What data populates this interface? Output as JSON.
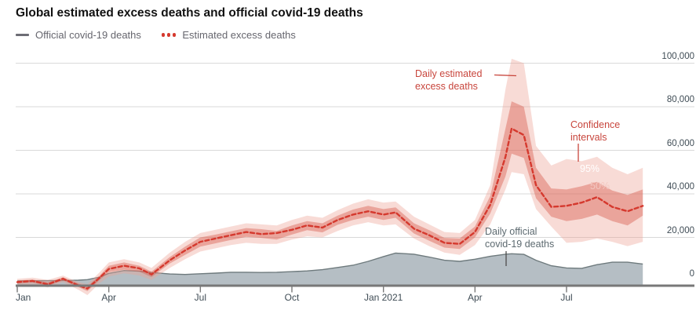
{
  "title": "Global estimated excess deaths and official covid-19 deaths",
  "legend": [
    {
      "label": "Official covid-19 deaths",
      "marker": "gray-dash"
    },
    {
      "label": "Estimated excess deaths",
      "marker": "red-dots"
    }
  ],
  "y_axis": {
    "ticks": [
      {
        "value": 0,
        "label": "0"
      },
      {
        "value": 20000,
        "label": "20,000"
      },
      {
        "value": 40000,
        "label": "40,000"
      },
      {
        "value": 60000,
        "label": "60,000"
      },
      {
        "value": 80000,
        "label": "80,000"
      },
      {
        "value": 100000,
        "label": "100,000"
      }
    ]
  },
  "x_axis": {
    "ticks": [
      {
        "t": 0,
        "label": "Jan",
        "align": "left"
      },
      {
        "t": 3,
        "label": "Apr",
        "align": "center"
      },
      {
        "t": 6,
        "label": "Jul",
        "align": "center"
      },
      {
        "t": 9,
        "label": "Oct",
        "align": "center"
      },
      {
        "t": 12,
        "label": "Jan 2021",
        "align": "center"
      },
      {
        "t": 15,
        "label": "Apr",
        "align": "center"
      },
      {
        "t": 18,
        "label": "Jul",
        "align": "center"
      }
    ]
  },
  "annotations": {
    "excess": {
      "line1": "Daily estimated",
      "line2": "excess deaths"
    },
    "confidence": {
      "line1": "Confidence",
      "line2": "intervals"
    },
    "ci95_label": "95%",
    "ci50_label": "50%",
    "official": {
      "line1": "Daily official",
      "line2": "covid-19 deaths"
    }
  },
  "colors": {
    "excess_line": "#d5392e",
    "ci95_band": "rgba(236,160,148,0.38)",
    "ci50_band": "rgba(214,88,74,0.42)",
    "official_fill": "#b5bec4",
    "official_stroke": "#6e7a7d",
    "axis": "#787878",
    "gridline": "#d9d9d9",
    "annotation_red": "#c8463d",
    "annotation_gray": "#5d6a70",
    "tick_label": "#3f4c55"
  },
  "chart_data": {
    "type": "line",
    "title": "Global estimated excess deaths and official covid-19 deaths",
    "x_unit": "months since 1 Jan 2020",
    "x_range": [
      0,
      20.5
    ],
    "ylim": [
      -7000,
      105000
    ],
    "grid": "horizontal",
    "x": [
      0,
      0.5,
      1,
      1.5,
      2,
      2.3,
      2.7,
      3,
      3.5,
      4,
      4.4,
      5,
      5.5,
      6,
      6.5,
      7,
      7.5,
      8,
      8.5,
      9,
      9.5,
      10,
      10.5,
      11,
      11.5,
      12,
      12.4,
      13,
      13.5,
      14,
      14.5,
      15,
      15.5,
      16,
      16.2,
      16.6,
      17,
      17.5,
      18,
      18.5,
      19,
      19.5,
      20,
      20.5
    ],
    "series": [
      {
        "name": "Estimated excess deaths",
        "role": "excess",
        "style": "dashed_line",
        "values": [
          -500,
          0,
          -1500,
          1000,
          -2000,
          -3500,
          1500,
          5500,
          7000,
          5800,
          3000,
          9500,
          14000,
          18000,
          19500,
          21000,
          22500,
          21500,
          22000,
          23500,
          25500,
          24500,
          28000,
          30500,
          32000,
          30500,
          31500,
          24000,
          21000,
          17500,
          17000,
          22500,
          35000,
          57000,
          70000,
          67000,
          44000,
          34000,
          34500,
          36000,
          38500,
          34000,
          32000,
          34500
        ]
      },
      {
        "name": "95% confidence interval",
        "role": "ci95",
        "style": "band",
        "hi": [
          1000,
          1500,
          500,
          2500,
          -500,
          -1500,
          4000,
          8500,
          10000,
          8500,
          6000,
          13000,
          18000,
          22000,
          23500,
          25000,
          26500,
          26000,
          25500,
          28000,
          30000,
          29000,
          32500,
          35500,
          37500,
          36000,
          36500,
          29500,
          26000,
          22500,
          22000,
          28000,
          44000,
          88000,
          102000,
          100000,
          62000,
          53000,
          56000,
          55000,
          57000,
          52000,
          49000,
          52000
        ],
        "lo": [
          -2000,
          -1500,
          -3000,
          -500,
          -4000,
          -6500,
          -1000,
          2000,
          3500,
          2500,
          500,
          6000,
          10000,
          13500,
          15000,
          16500,
          17500,
          17000,
          17000,
          19000,
          20500,
          20000,
          23000,
          25500,
          27000,
          25500,
          26000,
          19500,
          16000,
          13000,
          12000,
          16500,
          26000,
          42000,
          50000,
          49000,
          33000,
          25000,
          17500,
          18000,
          19500,
          18000,
          16000,
          18000
        ]
      },
      {
        "name": "50% confidence interval",
        "role": "ci50",
        "style": "band",
        "hi": [
          200,
          700,
          -700,
          1700,
          -1200,
          -2500,
          2500,
          7000,
          8500,
          7000,
          4300,
          11000,
          15800,
          20000,
          21300,
          22800,
          24300,
          23800,
          23000,
          25500,
          27500,
          26500,
          30000,
          32800,
          34500,
          33000,
          33800,
          26500,
          23300,
          19800,
          19500,
          25000,
          39000,
          70000,
          82500,
          80000,
          52000,
          42500,
          42000,
          43500,
          45500,
          41500,
          39500,
          42000
        ],
        "lo": [
          -1200,
          -700,
          -2200,
          300,
          -2800,
          -4700,
          500,
          4000,
          5200,
          4300,
          1800,
          8000,
          12000,
          15800,
          17300,
          18800,
          20300,
          19800,
          19000,
          21300,
          23300,
          22300,
          25800,
          28000,
          29500,
          28000,
          29000,
          21800,
          18500,
          15300,
          14700,
          20000,
          31000,
          48000,
          58500,
          56500,
          38000,
          29500,
          27500,
          28500,
          30500,
          27500,
          25500,
          30000
        ]
      },
      {
        "name": "Official covid-19 deaths",
        "role": "official",
        "style": "area",
        "values": [
          50,
          100,
          150,
          200,
          350,
          600,
          1800,
          3500,
          4800,
          4500,
          3900,
          3200,
          3000,
          3300,
          3600,
          4000,
          4000,
          3900,
          4000,
          4300,
          4600,
          5200,
          6200,
          7200,
          9000,
          11200,
          12800,
          12300,
          11000,
          9500,
          9000,
          10000,
          11300,
          12300,
          12500,
          12200,
          9500,
          7000,
          6000,
          5800,
          7500,
          8600,
          8600,
          7800
        ]
      }
    ]
  }
}
